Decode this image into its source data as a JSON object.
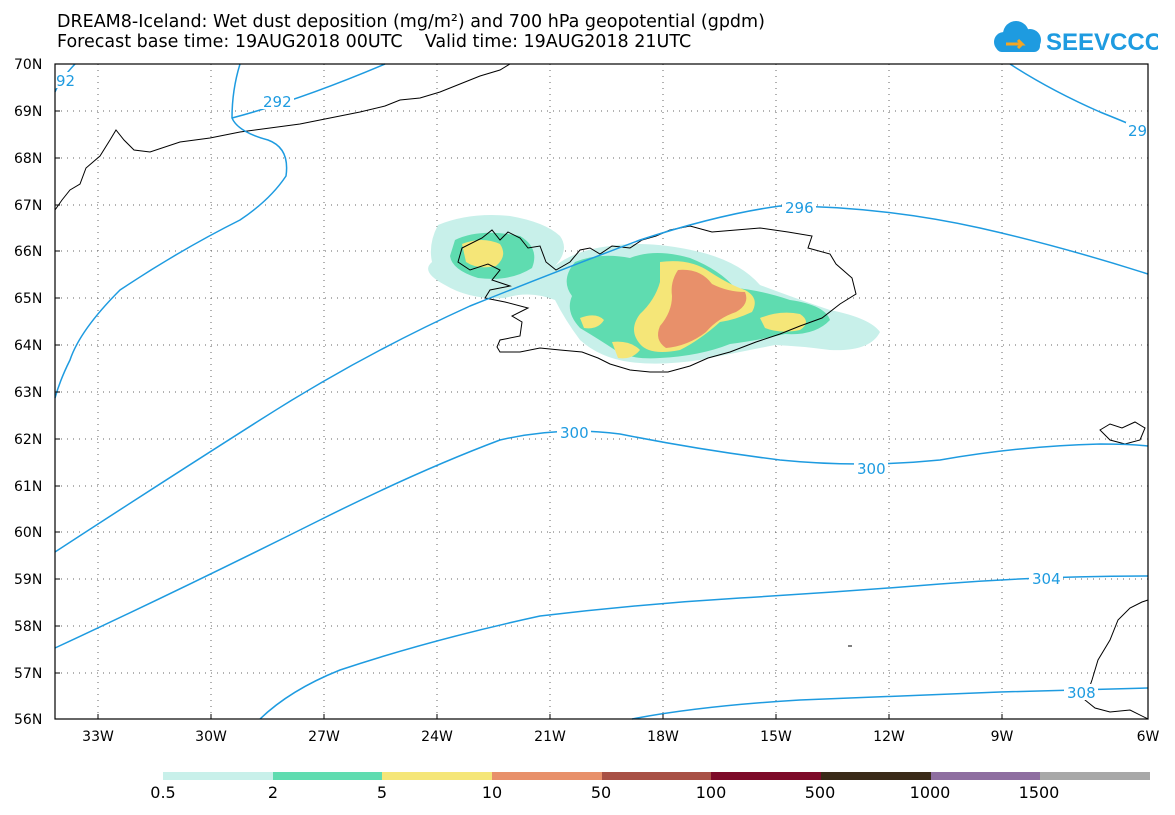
{
  "header": {
    "line1": "DREAM8-Iceland: Wet dust deposition (mg/m²) and 700 hPa geopotential (gpdm)",
    "line2": "Forecast base time: 19AUG2018 00UTC    Valid time: 19AUG2018 21UTC"
  },
  "logo": {
    "text": "SEEVCCC",
    "color": "#1e9be0",
    "icon": "cloud-icon"
  },
  "axes": {
    "lat_labels": [
      "70N",
      "69N",
      "68N",
      "67N",
      "66N",
      "65N",
      "64N",
      "63N",
      "62N",
      "61N",
      "60N",
      "59N",
      "58N",
      "57N",
      "56N"
    ],
    "lon_labels": [
      "33W",
      "30W",
      "27W",
      "24W",
      "21W",
      "18W",
      "15W",
      "12W",
      "9W",
      "6W"
    ]
  },
  "contour_labels": {
    "c292a": "92",
    "c292b": "292",
    "c29r": "29",
    "c296": "296",
    "c300a": "300",
    "c300b": "300",
    "c304": "304",
    "c308": "308"
  },
  "legend": {
    "colors": [
      "#c8f0ea",
      "#5fdcb0",
      "#f5e678",
      "#e8906a",
      "#a85045",
      "#7d0a28",
      "#3a2a18",
      "#8e6ea0",
      "#a8a8a8"
    ],
    "labels": [
      "0.5",
      "2",
      "5",
      "10",
      "50",
      "100",
      "500",
      "1000",
      "1500"
    ]
  },
  "styles": {
    "contour_color": "#1e9be0",
    "coast_color": "#000000"
  }
}
